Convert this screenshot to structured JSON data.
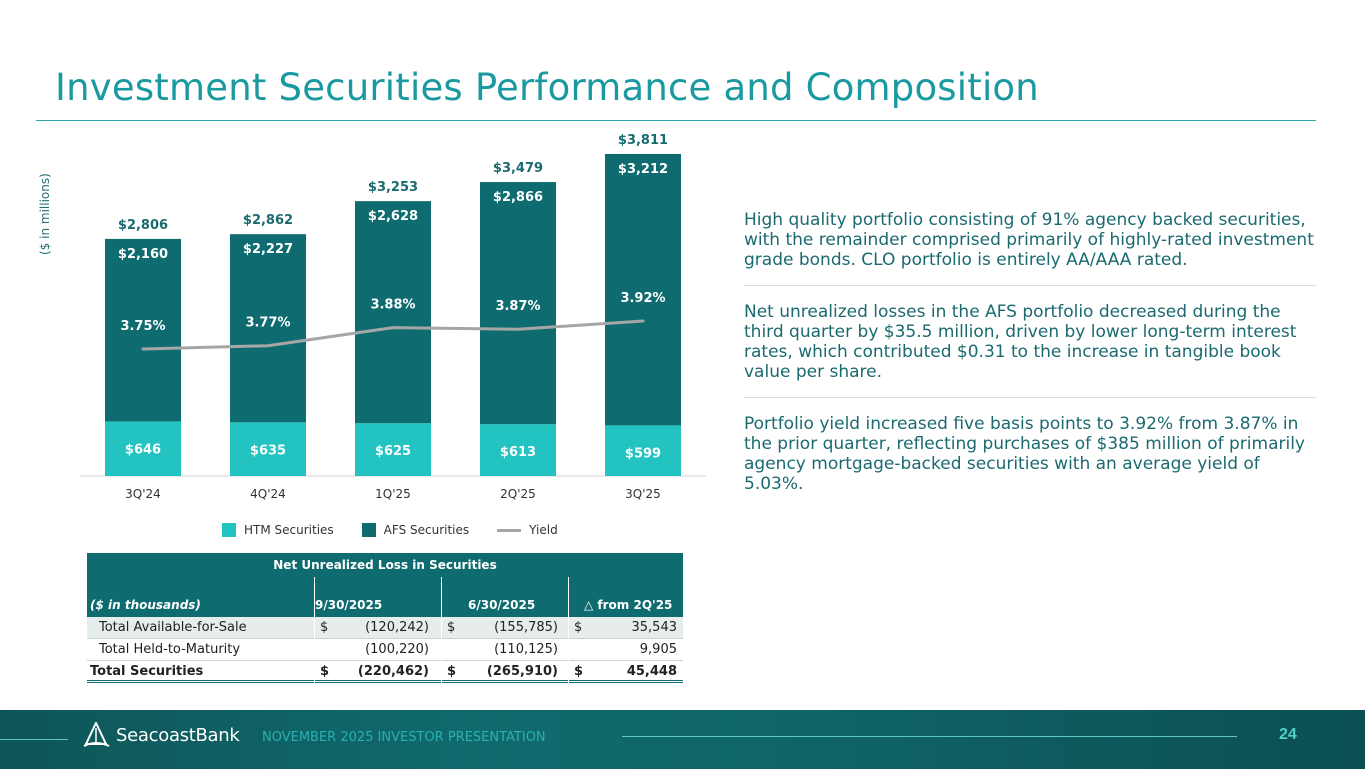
{
  "title": "Investment Securities Performance and Composition",
  "colors": {
    "htm": "#22c3c1",
    "afs": "#0e6c70",
    "yield": "#a6a6a6",
    "accent": "#1a9aa0"
  },
  "chart_data": {
    "type": "bar",
    "stacked": true,
    "ylabel": "($ in millions)",
    "categories": [
      "3Q'24",
      "4Q'24",
      "1Q'25",
      "2Q'25",
      "3Q'25"
    ],
    "series": [
      {
        "name": "HTM Securities",
        "values": [
          646,
          635,
          625,
          613,
          599
        ],
        "labels": [
          "$646",
          "$635",
          "$625",
          "$613",
          "$599"
        ]
      },
      {
        "name": "AFS Securities",
        "values": [
          2160,
          2227,
          2628,
          2866,
          3212
        ],
        "labels": [
          "$2,160",
          "$2,227",
          "$2,628",
          "$2,866",
          "$3,212"
        ]
      }
    ],
    "totals": {
      "values": [
        2806,
        2862,
        3253,
        3479,
        3811
      ],
      "labels": [
        "$2,806",
        "$2,862",
        "$3,253",
        "$3,479",
        "$3,811"
      ]
    },
    "line_series": {
      "name": "Yield",
      "values": [
        3.75,
        3.77,
        3.88,
        3.87,
        3.92
      ],
      "labels": [
        "3.75%",
        "3.77%",
        "3.88%",
        "3.87%",
        "3.92%"
      ]
    },
    "legend": [
      "HTM Securities",
      "AFS Securities",
      "Yield"
    ],
    "legend_position": "bottom",
    "grid": false
  },
  "bullets": [
    "High quality portfolio consisting of 91% agency backed securities, with the remainder comprised primarily of highly-rated investment grade bonds. CLO portfolio is entirely AA/AAA rated.",
    "Net unrealized losses in the AFS portfolio decreased during the third quarter by $35.5 million, driven by lower long-term interest rates, which contributed $0.31 to the increase in tangible book value per share.",
    "Portfolio yield increased five basis points to 3.92% from 3.87% in the prior quarter, reflecting purchases of $385 million of primarily agency mortgage-backed securities with an average yield of 5.03%."
  ],
  "table": {
    "title": "Net Unrealized Loss in Securities",
    "units": "($ in thousands)",
    "columns": [
      "9/30/2025",
      "6/30/2025",
      "△ from 2Q'25"
    ],
    "rows": [
      {
        "label": "Total Available-for-Sale",
        "c1_sym": "$",
        "c1": "(120,242)",
        "c2_sym": "$",
        "c2": "(155,785)",
        "c3_sym": "$",
        "c3": "35,543"
      },
      {
        "label": "Total Held-to-Maturity",
        "c1_sym": "",
        "c1": "(100,220)",
        "c2_sym": "",
        "c2": "(110,125)",
        "c3_sym": "",
        "c3": "9,905"
      },
      {
        "label": "Total Securities",
        "c1_sym": "$",
        "c1": "(220,462)",
        "c2_sym": "$",
        "c2": "(265,910)",
        "c3_sym": "$",
        "c3": "45,448"
      }
    ]
  },
  "footer": {
    "logo_text": "SeacoastBank",
    "presentation": "NOVEMBER 2025 INVESTOR PRESENTATION",
    "page": "24"
  }
}
